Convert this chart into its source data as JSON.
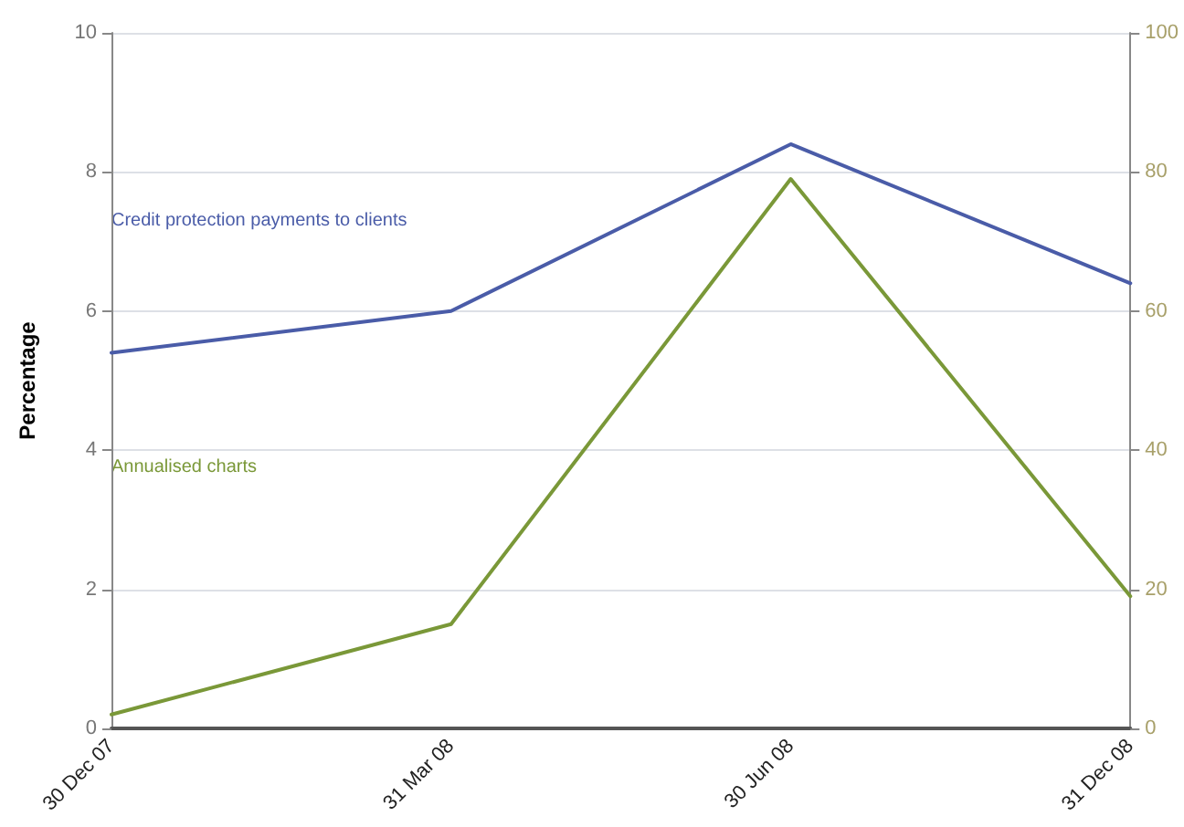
{
  "chart_data": {
    "type": "line",
    "ylabel": "Percentage",
    "categories": [
      "30 Dec 07",
      "31 Mar 08",
      "30 Jun 08",
      "31 Dec 08"
    ],
    "series": [
      {
        "name": "Credit protection payments to clients",
        "color": "#4a5ca8",
        "values": [
          5.4,
          6.0,
          8.4,
          6.4
        ]
      },
      {
        "name": "Annualised charts",
        "color": "#7a9838",
        "axis": "y2",
        "values": [
          2,
          15,
          79,
          19
        ]
      }
    ],
    "ylim": [
      0,
      10
    ],
    "yticks": [
      0,
      2,
      4,
      6,
      8,
      10
    ],
    "y2lim": [
      0,
      100
    ],
    "y2ticks": [
      0,
      20,
      40,
      60,
      80,
      100
    ],
    "grid": "y",
    "legend": false,
    "marker": "none",
    "line_style": "solid"
  }
}
